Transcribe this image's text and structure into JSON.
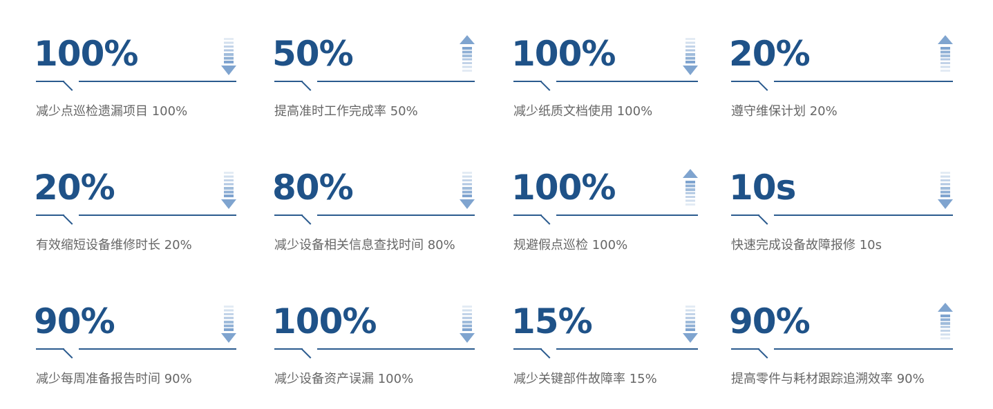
{
  "colors": {
    "value": "#1f5288",
    "line": "#2a5a8e",
    "arrow": "#7fa4cf",
    "label": "#666666"
  },
  "metrics": [
    {
      "value": "100%",
      "label": "减少点巡检遗漏项目 100%",
      "arrow": "down"
    },
    {
      "value": "50%",
      "label": "提高准时工作完成率 50%",
      "arrow": "up"
    },
    {
      "value": "100%",
      "label": "减少纸质文档使用 100%",
      "arrow": "down"
    },
    {
      "value": "20%",
      "label": "遵守维保计划 20%",
      "arrow": "up"
    },
    {
      "value": "20%",
      "label": "有效缩短设备维修时长 20%",
      "arrow": "down"
    },
    {
      "value": "80%",
      "label": "减少设备相关信息查找时间 80%",
      "arrow": "down"
    },
    {
      "value": "100%",
      "label": "规避假点巡检 100%",
      "arrow": "up"
    },
    {
      "value": "10s",
      "label": "快速完成设备故障报修 10s",
      "arrow": "down"
    },
    {
      "value": "90%",
      "label": "减少每周准备报告时间 90%",
      "arrow": "down"
    },
    {
      "value": "100%",
      "label": "减少设备资产误漏 100%",
      "arrow": "down"
    },
    {
      "value": "15%",
      "label": "减少关键部件故障率 15%",
      "arrow": "down"
    },
    {
      "value": "90%",
      "label": "提高零件与耗材跟踪追溯效率 90%",
      "arrow": "up"
    }
  ]
}
